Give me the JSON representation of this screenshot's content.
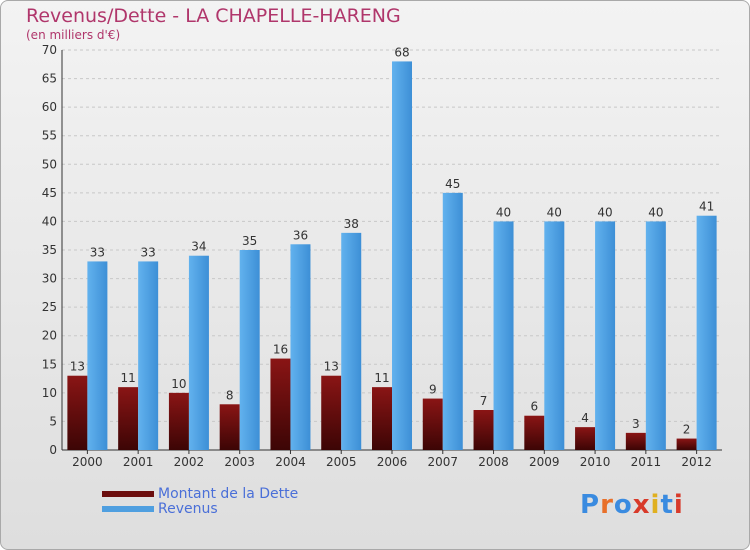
{
  "chart_data": {
    "type": "bar",
    "title": "Revenus/Dette - LA CHAPELLE-HARENG",
    "subtitle": "(en milliers d'€)",
    "categories": [
      "2000",
      "2001",
      "2002",
      "2003",
      "2004",
      "2005",
      "2006",
      "2007",
      "2008",
      "2009",
      "2010",
      "2011",
      "2012"
    ],
    "series": [
      {
        "name": "Montant de la Dette",
        "color": "#6b0d0d",
        "values": [
          13,
          11,
          10,
          8,
          16,
          13,
          11,
          9,
          7,
          6,
          4,
          3,
          2
        ]
      },
      {
        "name": "Revenus",
        "color": "#4f9fe0",
        "values": [
          33,
          33,
          34,
          35,
          36,
          38,
          68,
          45,
          40,
          40,
          40,
          40,
          41
        ]
      }
    ],
    "ylim": [
      0,
      70
    ],
    "yticks": [
      0,
      5,
      10,
      15,
      20,
      25,
      30,
      35,
      40,
      45,
      50,
      55,
      60,
      65,
      70
    ],
    "grid": true,
    "legend": "bottom-left"
  },
  "logo": {
    "text": "Proxiti"
  }
}
